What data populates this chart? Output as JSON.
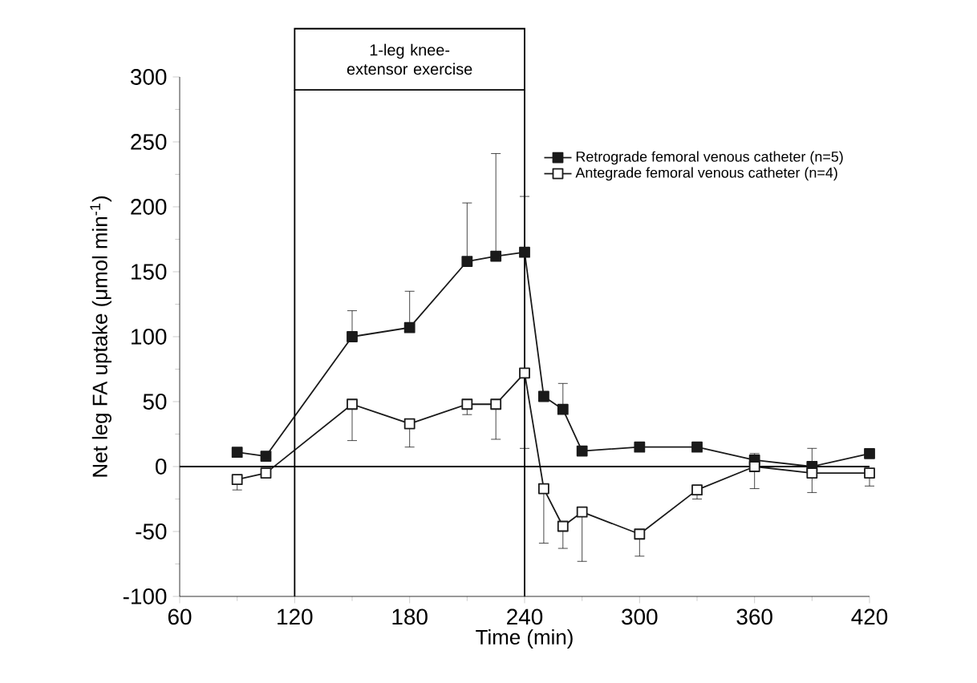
{
  "chart_data": {
    "type": "line",
    "xlabel": "Time (min)",
    "ylabel": "Net leg FA uptake (μmol min$^{-1}$)",
    "x": [
      90,
      105,
      150,
      180,
      210,
      225,
      240,
      250,
      260,
      270,
      300,
      330,
      360,
      390,
      420
    ],
    "series": [
      {
        "name": "Retrograde femoral venous catheter (n=5)",
        "color": "#1a1a1a",
        "values": [
          11,
          8,
          100,
          107,
          158,
          162,
          165,
          54,
          44,
          12,
          15,
          15,
          5,
          0,
          10
        ],
        "errors": [
          null,
          null,
          [
            100,
            120
          ],
          [
            107,
            135
          ],
          [
            158,
            203
          ],
          [
            162,
            241
          ],
          [
            165,
            208
          ],
          null,
          [
            44,
            64
          ],
          null,
          null,
          null,
          [
            5,
            10
          ],
          [
            0,
            14
          ],
          null
        ]
      },
      {
        "name": "Antegrade femoral venous catheter (n=4)",
        "color": "#1a1a1a",
        "values": [
          -10,
          -5,
          48,
          33,
          48,
          48,
          72,
          -17,
          -46,
          -35,
          -52,
          -18,
          0,
          -5,
          -5
        ],
        "errors": [
          [
            -18,
            -10
          ],
          null,
          [
            20,
            48
          ],
          [
            15,
            33
          ],
          [
            40,
            48
          ],
          [
            21,
            48
          ],
          [
            14,
            72
          ],
          [
            -59,
            -17
          ],
          [
            -63,
            -46
          ],
          [
            -73,
            -35
          ],
          [
            -69,
            -52
          ],
          [
            -25,
            -18
          ],
          [
            -17,
            0
          ],
          [
            -20,
            -5
          ],
          [
            -15,
            -5
          ]
        ]
      }
    ],
    "xlim": [
      60,
      420
    ],
    "ylim": [
      -100,
      300
    ],
    "xticks": [
      60,
      120,
      180,
      240,
      300,
      360,
      420
    ],
    "yticks": [
      -100,
      -50,
      0,
      50,
      100,
      150,
      200,
      250,
      300
    ],
    "ref_lines": [
      {
        "axis": "y",
        "value": 0
      },
      {
        "axis": "x",
        "value": 120
      },
      {
        "axis": "x",
        "value": 240
      }
    ],
    "annotations": [
      "1-leg knee-extensor exercise"
    ],
    "marker": "square",
    "line_style": "solid",
    "legend": "top right",
    "grid": false
  }
}
